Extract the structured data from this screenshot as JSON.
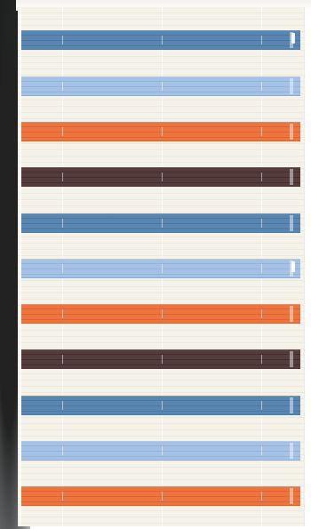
{
  "scene": {
    "stripe_sequence": [
      {
        "color": "#4f7fac"
      },
      {
        "color": "#9ebee4"
      },
      {
        "color": "#ec6a33"
      },
      {
        "color": "#4a3030"
      },
      {
        "color": "#4f7fac"
      },
      {
        "color": "#9ebee4"
      },
      {
        "color": "#ec6a33"
      },
      {
        "color": "#4a3030"
      },
      {
        "color": "#4f7fac"
      },
      {
        "color": "#9ebee4"
      },
      {
        "color": "#ec6a33"
      }
    ]
  }
}
